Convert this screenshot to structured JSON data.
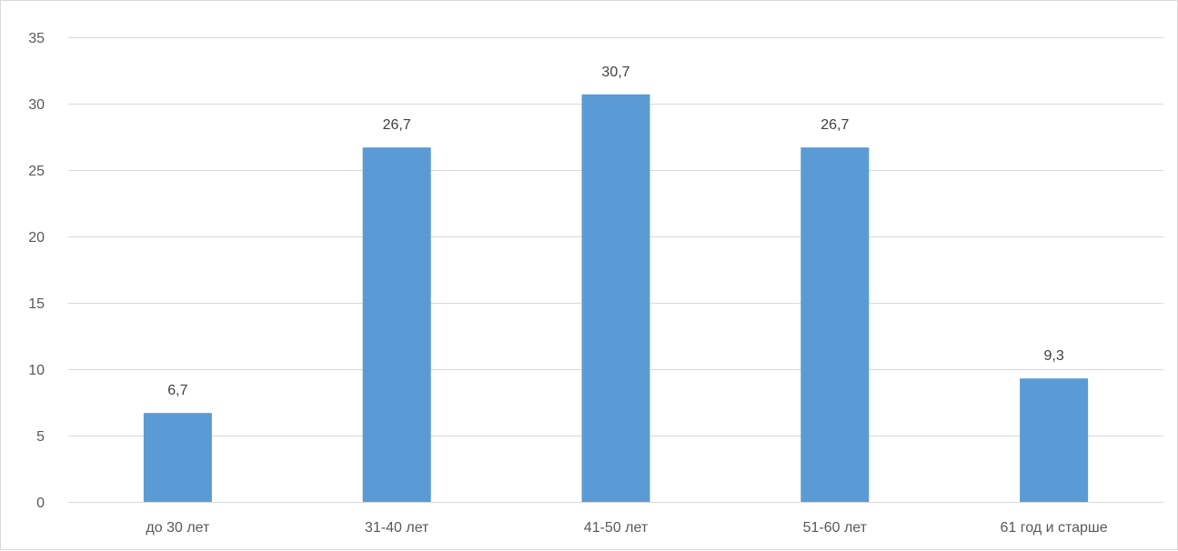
{
  "chart_data": {
    "type": "bar",
    "title": "",
    "xlabel": "",
    "ylabel": "",
    "categories": [
      "до 30 лет",
      "31-40 лет",
      "41-50 лет",
      "51-60 лет",
      "61 год и старше"
    ],
    "values": [
      6.7,
      26.7,
      30.7,
      26.7,
      9.3
    ],
    "data_labels": [
      "6,7",
      "26,7",
      "30,7",
      "26,7",
      "9,3"
    ],
    "ylim": [
      0,
      35
    ],
    "yticks": [
      0,
      5,
      10,
      15,
      20,
      25,
      30,
      35
    ],
    "grid": true,
    "legend": "none",
    "bar_color": "#5b9bd5",
    "grid_color": "#d9d9d9"
  }
}
